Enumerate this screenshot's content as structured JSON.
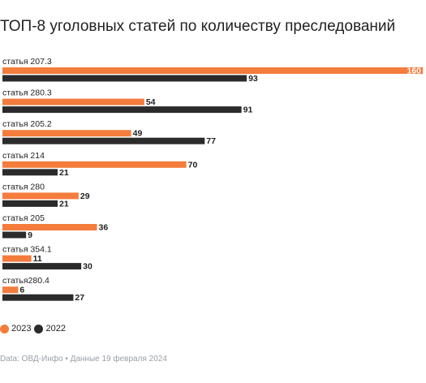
{
  "chart_data": {
    "type": "bar",
    "orientation": "horizontal",
    "title": "ТОП-8 уголовных статей по количеству преследований",
    "categories": [
      "статья 207.3",
      "статья 280.3",
      "статья 205.2",
      "статья 214",
      "статья 280",
      "статья 205",
      "статья 354.1",
      "статья280.4"
    ],
    "series": [
      {
        "name": "2023",
        "color": "#f47c3c",
        "values": [
          160,
          54,
          49,
          70,
          29,
          36,
          11,
          6
        ]
      },
      {
        "name": "2022",
        "color": "#2b2b2b",
        "values": [
          93,
          91,
          77,
          21,
          21,
          9,
          30,
          27
        ]
      }
    ],
    "xlim": [
      0,
      160
    ],
    "grid": false,
    "legend_position": "bottom-left",
    "source": "Data: ОВД-Инфо • Данные 19 февраля 2024"
  }
}
